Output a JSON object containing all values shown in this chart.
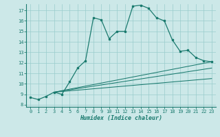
{
  "xlabel": "Humidex (Indice chaleur)",
  "bg_color": "#cce8e8",
  "line_color": "#1a7a6e",
  "grid_color": "#99cccc",
  "xlim": [
    -0.5,
    23.5
  ],
  "ylim": [
    7.8,
    17.6
  ],
  "yticks": [
    8,
    9,
    10,
    11,
    12,
    13,
    14,
    15,
    16,
    17
  ],
  "xticks": [
    0,
    1,
    2,
    3,
    4,
    5,
    6,
    7,
    8,
    9,
    10,
    11,
    12,
    13,
    14,
    15,
    16,
    17,
    18,
    19,
    20,
    21,
    22,
    23
  ],
  "main_x": [
    0,
    1,
    2,
    3,
    4,
    5,
    6,
    7,
    8,
    9,
    10,
    11,
    12,
    13,
    14,
    15,
    16,
    17,
    18,
    19,
    20,
    21,
    22,
    23
  ],
  "main_y": [
    8.7,
    8.5,
    8.8,
    9.2,
    9.0,
    10.2,
    11.5,
    12.2,
    16.3,
    16.1,
    14.3,
    15.0,
    15.0,
    17.4,
    17.5,
    17.2,
    16.3,
    16.0,
    14.2,
    13.1,
    13.2,
    12.5,
    12.2,
    12.1
  ],
  "straight_lines": [
    {
      "x": [
        3,
        23
      ],
      "y": [
        9.2,
        12.1
      ]
    },
    {
      "x": [
        3,
        23
      ],
      "y": [
        9.2,
        11.5
      ]
    },
    {
      "x": [
        3,
        23
      ],
      "y": [
        9.2,
        10.5
      ]
    }
  ]
}
